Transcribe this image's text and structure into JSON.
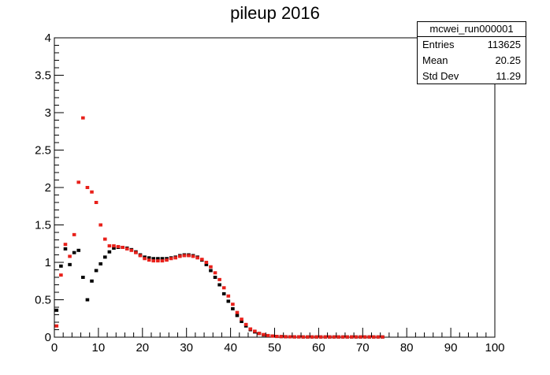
{
  "chart_data": {
    "type": "scatter",
    "title": "pileup 2016",
    "xlabel": "",
    "ylabel": "",
    "xlim": [
      0,
      100
    ],
    "ylim": [
      0,
      4
    ],
    "x_ticks": [
      "0",
      "10",
      "20",
      "30",
      "40",
      "50",
      "60",
      "70",
      "80",
      "90",
      "100"
    ],
    "y_ticks": [
      "0",
      "0.5",
      "1",
      "1.5",
      "2",
      "2.5",
      "3",
      "3.5",
      "4"
    ],
    "grid": false,
    "series": [
      {
        "color": "#000000",
        "points": [
          [
            0.5,
            0.36
          ],
          [
            1.5,
            0.95
          ],
          [
            2.5,
            1.18
          ],
          [
            3.5,
            0.97
          ],
          [
            4.5,
            1.13
          ],
          [
            5.5,
            1.16
          ],
          [
            6.5,
            0.8
          ],
          [
            7.5,
            0.5
          ],
          [
            8.5,
            0.75
          ],
          [
            9.5,
            0.89
          ],
          [
            10.5,
            0.98
          ],
          [
            11.5,
            1.07
          ],
          [
            12.5,
            1.14
          ],
          [
            13.5,
            1.19
          ],
          [
            14.5,
            1.2
          ],
          [
            15.5,
            1.2
          ],
          [
            16.5,
            1.19
          ],
          [
            17.5,
            1.17
          ],
          [
            18.5,
            1.14
          ],
          [
            19.5,
            1.1
          ],
          [
            20.5,
            1.07
          ],
          [
            21.5,
            1.06
          ],
          [
            22.5,
            1.05
          ],
          [
            23.5,
            1.05
          ],
          [
            24.5,
            1.05
          ],
          [
            25.5,
            1.05
          ],
          [
            26.5,
            1.06
          ],
          [
            27.5,
            1.07
          ],
          [
            28.5,
            1.09
          ],
          [
            29.5,
            1.1
          ],
          [
            30.5,
            1.1
          ],
          [
            31.5,
            1.09
          ],
          [
            32.5,
            1.07
          ],
          [
            33.5,
            1.03
          ],
          [
            34.5,
            0.97
          ],
          [
            35.5,
            0.89
          ],
          [
            36.5,
            0.8
          ],
          [
            37.5,
            0.7
          ],
          [
            38.5,
            0.58
          ],
          [
            39.5,
            0.48
          ],
          [
            40.5,
            0.38
          ],
          [
            41.5,
            0.29
          ],
          [
            42.5,
            0.21
          ],
          [
            43.5,
            0.15
          ],
          [
            44.5,
            0.1
          ],
          [
            45.5,
            0.07
          ],
          [
            46.5,
            0.05
          ],
          [
            47.5,
            0.03
          ],
          [
            48.5,
            0.02
          ],
          [
            49.5,
            0.015
          ],
          [
            50.5,
            0.01
          ],
          [
            51.5,
            0.008
          ],
          [
            52.5,
            0.006
          ],
          [
            53.5,
            0.005
          ],
          [
            54.5,
            0.004
          ],
          [
            55.5,
            0.004
          ],
          [
            56.5,
            0.003
          ],
          [
            57.5,
            0.003
          ],
          [
            58.5,
            0.003
          ],
          [
            59.5,
            0.003
          ],
          [
            60.5,
            0.003
          ],
          [
            61.5,
            0.003
          ],
          [
            62.5,
            0.003
          ],
          [
            63.5,
            0.003
          ],
          [
            64.5,
            0.003
          ],
          [
            65.5,
            0.003
          ],
          [
            66.5,
            0.003
          ],
          [
            67.5,
            0.003
          ],
          [
            68.5,
            0.003
          ],
          [
            69.5,
            0.003
          ],
          [
            70.5,
            0.003
          ],
          [
            71.5,
            0.003
          ],
          [
            72.5,
            0.003
          ],
          [
            73.5,
            0.003
          ],
          [
            74.5,
            0.003
          ]
        ]
      },
      {
        "color": "#e8201a",
        "points": [
          [
            0.5,
            0.15
          ],
          [
            1.5,
            0.83
          ],
          [
            2.5,
            1.24
          ],
          [
            3.5,
            1.08
          ],
          [
            4.5,
            1.37
          ],
          [
            5.5,
            2.07
          ],
          [
            6.5,
            2.93
          ],
          [
            7.5,
            2.0
          ],
          [
            8.5,
            1.94
          ],
          [
            9.5,
            1.8
          ],
          [
            10.5,
            1.5
          ],
          [
            11.5,
            1.31
          ],
          [
            12.5,
            1.22
          ],
          [
            13.5,
            1.22
          ],
          [
            14.5,
            1.21
          ],
          [
            15.5,
            1.2
          ],
          [
            16.5,
            1.18
          ],
          [
            17.5,
            1.16
          ],
          [
            18.5,
            1.13
          ],
          [
            19.5,
            1.09
          ],
          [
            20.5,
            1.05
          ],
          [
            21.5,
            1.03
          ],
          [
            22.5,
            1.02
          ],
          [
            23.5,
            1.02
          ],
          [
            24.5,
            1.02
          ],
          [
            25.5,
            1.03
          ],
          [
            26.5,
            1.05
          ],
          [
            27.5,
            1.06
          ],
          [
            28.5,
            1.08
          ],
          [
            29.5,
            1.09
          ],
          [
            30.5,
            1.09
          ],
          [
            31.5,
            1.08
          ],
          [
            32.5,
            1.06
          ],
          [
            33.5,
            1.04
          ],
          [
            34.5,
            1.0
          ],
          [
            35.5,
            0.94
          ],
          [
            36.5,
            0.86
          ],
          [
            37.5,
            0.77
          ],
          [
            38.5,
            0.66
          ],
          [
            39.5,
            0.55
          ],
          [
            40.5,
            0.44
          ],
          [
            41.5,
            0.33
          ],
          [
            42.5,
            0.24
          ],
          [
            43.5,
            0.17
          ],
          [
            44.5,
            0.11
          ],
          [
            45.5,
            0.08
          ],
          [
            46.5,
            0.05
          ],
          [
            47.5,
            0.035
          ],
          [
            48.5,
            0.022
          ],
          [
            49.5,
            0.015
          ],
          [
            50.5,
            0.01
          ],
          [
            51.5,
            0.008
          ],
          [
            52.5,
            0.006
          ],
          [
            53.5,
            0.005
          ],
          [
            54.5,
            0.004
          ],
          [
            55.5,
            0.004
          ],
          [
            56.5,
            0.003
          ],
          [
            57.5,
            0.003
          ],
          [
            58.5,
            0.003
          ],
          [
            59.5,
            0.003
          ],
          [
            60.5,
            0.003
          ],
          [
            61.5,
            0.003
          ],
          [
            62.5,
            0.003
          ],
          [
            63.5,
            0.003
          ],
          [
            64.5,
            0.003
          ],
          [
            65.5,
            0.003
          ],
          [
            66.5,
            0.003
          ],
          [
            67.5,
            0.003
          ],
          [
            68.5,
            0.003
          ],
          [
            69.5,
            0.003
          ],
          [
            70.5,
            0.003
          ],
          [
            71.5,
            0.003
          ],
          [
            72.5,
            0.003
          ],
          [
            73.5,
            0.003
          ],
          [
            74.5,
            0.003
          ]
        ]
      }
    ],
    "stats_box": {
      "name": "mcwei_run000001",
      "rows": [
        {
          "label": "Entries",
          "value": "113625"
        },
        {
          "label": "Mean",
          "value": "20.25"
        },
        {
          "label": "Std Dev",
          "value": "11.29"
        }
      ]
    }
  }
}
